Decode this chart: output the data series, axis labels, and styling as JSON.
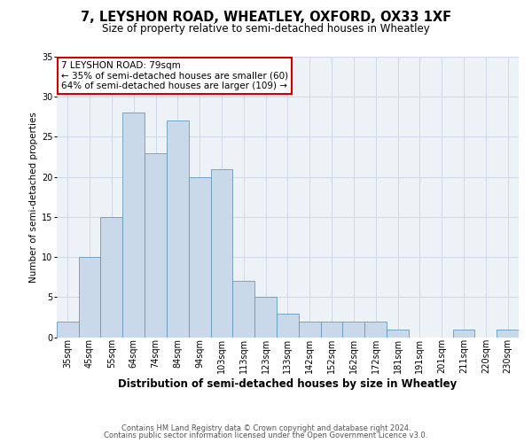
{
  "title": "7, LEYSHON ROAD, WHEATLEY, OXFORD, OX33 1XF",
  "subtitle": "Size of property relative to semi-detached houses in Wheatley",
  "xlabel": "Distribution of semi-detached houses by size in Wheatley",
  "ylabel": "Number of semi-detached properties",
  "categories": [
    "35sqm",
    "45sqm",
    "55sqm",
    "64sqm",
    "74sqm",
    "84sqm",
    "94sqm",
    "103sqm",
    "113sqm",
    "123sqm",
    "133sqm",
    "142sqm",
    "152sqm",
    "162sqm",
    "172sqm",
    "181sqm",
    "191sqm",
    "201sqm",
    "211sqm",
    "220sqm",
    "230sqm"
  ],
  "values": [
    2,
    10,
    15,
    28,
    23,
    27,
    20,
    21,
    7,
    5,
    3,
    2,
    2,
    2,
    2,
    1,
    0,
    0,
    1,
    0,
    1
  ],
  "bar_color": "#cddaе8",
  "bar_color_hex": "#c9d9e9",
  "bar_edge_color": "#6699bb",
  "ylim": [
    0,
    35
  ],
  "yticks": [
    0,
    5,
    10,
    15,
    20,
    25,
    30,
    35
  ],
  "annotation_line1": "7 LEYSHON ROAD: 79sqm",
  "annotation_line2": "← 35% of semi-detached houses are smaller (60)",
  "annotation_line3": "64% of semi-detached houses are larger (109) →",
  "annotation_box_color": "#ffffff",
  "annotation_box_edge": "#cc0000",
  "footer1": "Contains HM Land Registry data © Crown copyright and database right 2024.",
  "footer2": "Contains public sector information licensed under the Open Government Licence v3.0.",
  "background_color": "#edf2f7",
  "grid_color": "#d0d8e8",
  "title_fontsize": 10.5,
  "subtitle_fontsize": 8.5,
  "ylabel_fontsize": 7.5,
  "xlabel_fontsize": 8.5,
  "tick_fontsize": 7,
  "annotation_fontsize": 7.5,
  "footer_fontsize": 6
}
